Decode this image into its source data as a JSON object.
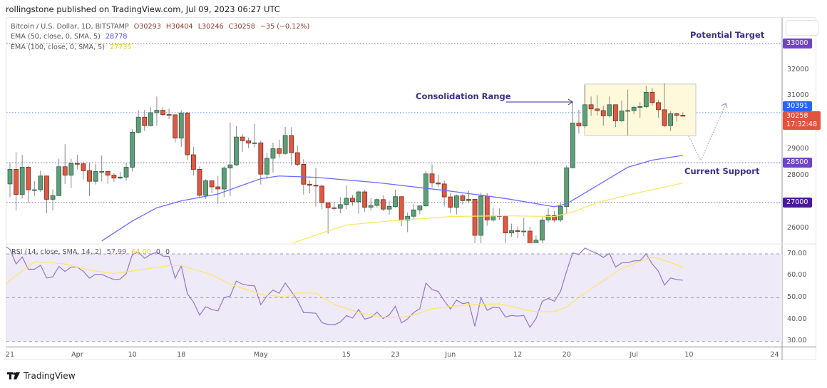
{
  "header": {
    "publisher": "rollingstone published on TradingView.com, Jul 09, 2023 06:27 UTC"
  },
  "legend": {
    "symbol": "Bitcoin / U.S. Dollar, 1D, BITSTAMP",
    "open": "O30293",
    "high": "H30404",
    "low": "L30246",
    "close": "C30258",
    "change": "−35 (−0.12%)",
    "ema50_label": "EMA (50, close, 0, SMA, 5)",
    "ema50_value": "28778",
    "ema100_label": "EMA (100, close, 0, SMA, 5)",
    "ema100_value": "27735",
    "rsi_label": "RSI (14, close, SMA, 14, 2)",
    "rsi_value": "57.99",
    "rsi_sma_value": "64.00",
    "rsi_extra1": "0",
    "rsi_extra2": "0"
  },
  "annotations": {
    "consolidation": "Consolidation Range",
    "target": "Potential Target",
    "support": "Current Support"
  },
  "price_axis": {
    "ticks": [
      "32000",
      "31000",
      "29000",
      "28000",
      "26000"
    ],
    "levels": [
      {
        "label": "33000",
        "color": "#7045c5"
      },
      {
        "label": "28500",
        "color": "#7045c5"
      },
      {
        "label": "27000",
        "color": "#4a1a9a"
      }
    ],
    "prev_close": {
      "label": "30391",
      "color": "#2962ff"
    },
    "last": {
      "label": "30258",
      "countdown": "17:32:48",
      "color": "#e0533c"
    }
  },
  "rsi_axis": {
    "ticks": [
      "70.00",
      "60.00",
      "50.00",
      "40.00",
      "30.00"
    ]
  },
  "time_axis": {
    "ticks": [
      {
        "label": "21",
        "date": "2023-03-21"
      },
      {
        "label": "Apr",
        "date": "2023-04-01"
      },
      {
        "label": "10",
        "date": "2023-04-10"
      },
      {
        "label": "18",
        "date": "2023-04-18"
      },
      {
        "label": "May",
        "date": "2023-05-01"
      },
      {
        "label": "15",
        "date": "2023-05-15"
      },
      {
        "label": "23",
        "date": "2023-05-23"
      },
      {
        "label": "Jun",
        "date": "2023-06-01"
      },
      {
        "label": "12",
        "date": "2023-06-12"
      },
      {
        "label": "20",
        "date": "2023-06-20"
      },
      {
        "label": "Jul",
        "date": "2023-07-01"
      },
      {
        "label": "10",
        "date": "2023-07-10"
      },
      {
        "label": "24",
        "date": "2023-07-24"
      }
    ]
  },
  "footer": {
    "brand": "TradingView"
  },
  "colors": {
    "up": "#5e9f7a",
    "up_border": "#2f5e43",
    "down": "#dc5a44",
    "down_border": "#7a2a1e",
    "ema50": "#6b6bff",
    "ema100": "#ffe566",
    "rsi": "#9575cd",
    "rsi_sma": "#ffe566",
    "rsi_band": "#efeaf7"
  },
  "chart_data": {
    "type": "candlestick",
    "symbol": "BTCUSD",
    "interval": "1D",
    "ylim": [
      25450,
      33500
    ],
    "rsi_ylim": [
      25,
      75
    ],
    "horizontal_levels": [
      33000,
      30391,
      28500,
      27000
    ],
    "consolidation_range": {
      "from": "2023-06-22",
      "to": "2023-07-10",
      "high": 31470,
      "low": 29530
    },
    "candles": [
      [
        "2023-03-21",
        27700,
        28480,
        27200,
        28250
      ],
      [
        "2023-03-22",
        28250,
        28900,
        26700,
        27300
      ],
      [
        "2023-03-23",
        27300,
        28800,
        27150,
        28330
      ],
      [
        "2023-03-24",
        28330,
        28380,
        27000,
        27480
      ],
      [
        "2023-03-25",
        27480,
        27800,
        27250,
        27480
      ],
      [
        "2023-03-26",
        27480,
        28200,
        27400,
        28000
      ],
      [
        "2023-03-27",
        28000,
        28020,
        26600,
        27120
      ],
      [
        "2023-03-28",
        27120,
        27500,
        26700,
        27260
      ],
      [
        "2023-03-29",
        27260,
        28650,
        27240,
        28350
      ],
      [
        "2023-03-30",
        28350,
        29200,
        27700,
        28030
      ],
      [
        "2023-03-31",
        28030,
        28650,
        27550,
        28470
      ],
      [
        "2023-04-01",
        28470,
        28800,
        28250,
        28460
      ],
      [
        "2023-04-02",
        28460,
        28530,
        27870,
        28200
      ],
      [
        "2023-04-03",
        28200,
        28500,
        27250,
        27800
      ],
      [
        "2023-04-04",
        27800,
        28450,
        27680,
        28170
      ],
      [
        "2023-04-05",
        28170,
        28770,
        27800,
        28170
      ],
      [
        "2023-04-06",
        28170,
        28200,
        27710,
        28030
      ],
      [
        "2023-04-07",
        28030,
        28100,
        27780,
        27920
      ],
      [
        "2023-04-08",
        27920,
        28150,
        27880,
        27960
      ],
      [
        "2023-04-09",
        27960,
        28500,
        27820,
        28330
      ],
      [
        "2023-04-10",
        28330,
        29770,
        28170,
        29650
      ],
      [
        "2023-04-11",
        29650,
        30480,
        29600,
        30220
      ],
      [
        "2023-04-12",
        30220,
        30500,
        29700,
        29900
      ],
      [
        "2023-04-13",
        29900,
        30600,
        29870,
        30390
      ],
      [
        "2023-04-14",
        30390,
        31000,
        29900,
        30480
      ],
      [
        "2023-04-15",
        30480,
        30600,
        30250,
        30320
      ],
      [
        "2023-04-16",
        30320,
        30540,
        30150,
        30310
      ],
      [
        "2023-04-17",
        30310,
        30330,
        29270,
        29430
      ],
      [
        "2023-04-18",
        29430,
        30480,
        29100,
        30380
      ],
      [
        "2023-04-19",
        30380,
        30420,
        28600,
        28800
      ],
      [
        "2023-04-20",
        28800,
        29100,
        28020,
        28250
      ],
      [
        "2023-04-21",
        28250,
        28360,
        27150,
        27270
      ],
      [
        "2023-04-22",
        27270,
        27880,
        27130,
        27820
      ],
      [
        "2023-04-23",
        27820,
        27820,
        27370,
        27590
      ],
      [
        "2023-04-24",
        27590,
        28000,
        26950,
        27510
      ],
      [
        "2023-04-25",
        27510,
        28370,
        27200,
        28300
      ],
      [
        "2023-04-26",
        28300,
        30020,
        27250,
        28420
      ],
      [
        "2023-04-27",
        28420,
        29880,
        28380,
        29470
      ],
      [
        "2023-04-28",
        29470,
        29570,
        28900,
        29330
      ],
      [
        "2023-04-29",
        29330,
        29450,
        29050,
        29240
      ],
      [
        "2023-04-30",
        29240,
        29960,
        29080,
        29250
      ],
      [
        "2023-05-01",
        29250,
        29330,
        27680,
        28070
      ],
      [
        "2023-05-02",
        28070,
        28880,
        27880,
        28670
      ],
      [
        "2023-05-03",
        28670,
        29260,
        28130,
        29030
      ],
      [
        "2023-05-04",
        29030,
        29370,
        28700,
        28850
      ],
      [
        "2023-05-05",
        28850,
        29850,
        28800,
        29530
      ],
      [
        "2023-05-06",
        29530,
        29840,
        28400,
        28880
      ],
      [
        "2023-05-07",
        28880,
        29150,
        28370,
        28440
      ],
      [
        "2023-05-08",
        28440,
        28630,
        27300,
        27690
      ],
      [
        "2023-05-09",
        27690,
        27840,
        27350,
        27650
      ],
      [
        "2023-05-10",
        27650,
        28300,
        26850,
        27620
      ],
      [
        "2023-05-11",
        27620,
        27650,
        26750,
        26990
      ],
      [
        "2023-05-12",
        26990,
        27000,
        25830,
        26800
      ],
      [
        "2023-05-13",
        26800,
        27020,
        26690,
        26780
      ],
      [
        "2023-05-14",
        26780,
        27200,
        26590,
        26920
      ],
      [
        "2023-05-15",
        26920,
        27650,
        26750,
        27160
      ],
      [
        "2023-05-16",
        27160,
        27280,
        26880,
        27030
      ],
      [
        "2023-05-17",
        27030,
        27450,
        26580,
        27400
      ],
      [
        "2023-05-18",
        27400,
        27480,
        26650,
        26820
      ],
      [
        "2023-05-19",
        26820,
        27170,
        26700,
        26890
      ],
      [
        "2023-05-20",
        26890,
        27150,
        26810,
        27110
      ],
      [
        "2023-05-21",
        27110,
        27270,
        26670,
        26750
      ],
      [
        "2023-05-22",
        26750,
        27050,
        26550,
        26850
      ],
      [
        "2023-05-23",
        26850,
        27480,
        26800,
        27220
      ],
      [
        "2023-05-24",
        27220,
        27220,
        26100,
        26330
      ],
      [
        "2023-05-25",
        26330,
        26620,
        25880,
        26480
      ],
      [
        "2023-05-26",
        26480,
        26940,
        26350,
        26720
      ],
      [
        "2023-05-27",
        26720,
        26900,
        26560,
        26870
      ],
      [
        "2023-05-28",
        26870,
        28180,
        26850,
        28080
      ],
      [
        "2023-05-29",
        28080,
        28440,
        27560,
        27740
      ],
      [
        "2023-05-30",
        27740,
        28050,
        27580,
        27700
      ],
      [
        "2023-05-31",
        27700,
        27820,
        26850,
        27210
      ],
      [
        "2023-06-01",
        27210,
        27350,
        26600,
        26820
      ],
      [
        "2023-06-02",
        26820,
        27300,
        26550,
        27250
      ],
      [
        "2023-06-03",
        27250,
        27330,
        26930,
        27070
      ],
      [
        "2023-06-04",
        27070,
        27440,
        26970,
        27120
      ],
      [
        "2023-06-05",
        27120,
        27140,
        25400,
        25760
      ],
      [
        "2023-06-06",
        25760,
        27370,
        25400,
        27240
      ],
      [
        "2023-06-07",
        27240,
        27360,
        26120,
        26340
      ],
      [
        "2023-06-08",
        26340,
        26800,
        26280,
        26500
      ],
      [
        "2023-06-09",
        26500,
        26780,
        26340,
        26480
      ],
      [
        "2023-06-10",
        26480,
        26540,
        25400,
        25850
      ],
      [
        "2023-06-11",
        25850,
        26200,
        25700,
        25940
      ],
      [
        "2023-06-12",
        25940,
        26100,
        25650,
        25900
      ],
      [
        "2023-06-13",
        25900,
        26420,
        25730,
        25920
      ],
      [
        "2023-06-14",
        25920,
        26080,
        24800,
        25120
      ],
      [
        "2023-06-15",
        25120,
        25750,
        24700,
        25580
      ],
      [
        "2023-06-16",
        25580,
        26480,
        25180,
        26340
      ],
      [
        "2023-06-17",
        26340,
        26780,
        26250,
        26510
      ],
      [
        "2023-06-18",
        26510,
        26680,
        26250,
        26340
      ],
      [
        "2023-06-19",
        26340,
        27000,
        26270,
        26850
      ],
      [
        "2023-06-20",
        26850,
        28400,
        26600,
        28310
      ],
      [
        "2023-06-21",
        28310,
        30800,
        28300,
        30000
      ],
      [
        "2023-06-22",
        30000,
        30500,
        29600,
        29890
      ],
      [
        "2023-06-23",
        29890,
        31430,
        29820,
        30690
      ],
      [
        "2023-06-24",
        30690,
        31000,
        30270,
        30530
      ],
      [
        "2023-06-25",
        30530,
        31050,
        30290,
        30470
      ],
      [
        "2023-06-26",
        30470,
        30650,
        29900,
        30270
      ],
      [
        "2023-06-27",
        30270,
        31000,
        30220,
        30690
      ],
      [
        "2023-06-28",
        30690,
        30700,
        29850,
        30080
      ],
      [
        "2023-06-29",
        30080,
        30850,
        30040,
        30450
      ],
      [
        "2023-06-30",
        30450,
        31260,
        29530,
        30470
      ],
      [
        "2023-07-01",
        30470,
        30650,
        30330,
        30590
      ],
      [
        "2023-07-02",
        30590,
        30790,
        30200,
        30620
      ],
      [
        "2023-07-03",
        30620,
        31400,
        30560,
        31160
      ],
      [
        "2023-07-04",
        31160,
        31330,
        30640,
        30770
      ],
      [
        "2023-07-05",
        30770,
        30870,
        30200,
        30500
      ],
      [
        "2023-07-06",
        30500,
        31500,
        29850,
        29900
      ],
      [
        "2023-07-07",
        29900,
        30450,
        29700,
        30350
      ],
      [
        "2023-07-08",
        30350,
        30380,
        30050,
        30290
      ],
      [
        "2023-07-09",
        30293,
        30404,
        30246,
        30258
      ]
    ],
    "ema50": [
      [
        "2023-04-05",
        25550
      ],
      [
        "2023-04-10",
        26300
      ],
      [
        "2023-04-14",
        26800
      ],
      [
        "2023-04-18",
        27060
      ],
      [
        "2023-04-24",
        27320
      ],
      [
        "2023-05-01",
        27900
      ],
      [
        "2023-05-04",
        28000
      ],
      [
        "2023-05-10",
        27950
      ],
      [
        "2023-05-20",
        27750
      ],
      [
        "2023-06-01",
        27430
      ],
      [
        "2023-06-10",
        27150
      ],
      [
        "2023-06-18",
        26840
      ],
      [
        "2023-06-20",
        26950
      ],
      [
        "2023-06-24",
        27500
      ],
      [
        "2023-06-30",
        28330
      ],
      [
        "2023-07-04",
        28600
      ],
      [
        "2023-07-09",
        28778
      ]
    ],
    "ema100": [
      [
        "2023-05-06",
        25450
      ],
      [
        "2023-05-11",
        25850
      ],
      [
        "2023-05-15",
        26150
      ],
      [
        "2023-05-22",
        26300
      ],
      [
        "2023-06-01",
        26470
      ],
      [
        "2023-06-10",
        26500
      ],
      [
        "2023-06-18",
        26470
      ],
      [
        "2023-06-21",
        26640
      ],
      [
        "2023-06-25",
        27000
      ],
      [
        "2023-07-01",
        27330
      ],
      [
        "2023-07-09",
        27735
      ]
    ],
    "rsi": {
      "start": "2023-03-20",
      "values": [
        74,
        72,
        65.4,
        68.6,
        63,
        63,
        64.8,
        59,
        59.6,
        64.3,
        62,
        64,
        64,
        62,
        58.9,
        60.7,
        60.7,
        59.4,
        58.3,
        58.5,
        61,
        69.7,
        70.8,
        68,
        69.7,
        70.8,
        69,
        68.8,
        58.9,
        64.6,
        51.8,
        48,
        42,
        45.9,
        44.6,
        44,
        50,
        50.8,
        57.6,
        56.2,
        55.6,
        55.4,
        46.8,
        50.8,
        53.5,
        52,
        56.7,
        52.9,
        48.8,
        43.2,
        43.1,
        42.9,
        38.6,
        37.8,
        37.6,
        38.9,
        41.8,
        40.7,
        44.6,
        40.2,
        41,
        43.4,
        40.5,
        42.1,
        46.1,
        38.5,
        40.3,
        43.2,
        45,
        56.7,
        53.7,
        52.9,
        48.6,
        44.8,
        48.9,
        47.3,
        47.8,
        36.9,
        50,
        44.3,
        45.6,
        45.4,
        41.2,
        41.9,
        41.6,
        41.9,
        36.5,
        40.5,
        48.3,
        49.7,
        48.4,
        52.9,
        62.1,
        70.5,
        69.7,
        72.7,
        71.3,
        70.2,
        68.4,
        70.2,
        64,
        65.9,
        66,
        66.8,
        66.9,
        70,
        65.4,
        62.1,
        55.8,
        59,
        58.3,
        57.99
      ]
    },
    "rsi_sma": [
      [
        "2023-03-20",
        55
      ],
      [
        "2023-03-21",
        58
      ],
      [
        "2023-03-25",
        66.4
      ],
      [
        "2023-03-28",
        65.9
      ],
      [
        "2023-03-30",
        65.4
      ],
      [
        "2023-04-03",
        62.6
      ],
      [
        "2023-04-07",
        61
      ],
      [
        "2023-04-11",
        62.6
      ],
      [
        "2023-04-16",
        64.6
      ],
      [
        "2023-04-18",
        64.6
      ],
      [
        "2023-04-23",
        60.5
      ],
      [
        "2023-04-26",
        56.2
      ],
      [
        "2023-05-01",
        51.6
      ],
      [
        "2023-05-05",
        50.2
      ],
      [
        "2023-05-07",
        52.2
      ],
      [
        "2023-05-10",
        52
      ],
      [
        "2023-05-13",
        47
      ],
      [
        "2023-05-14",
        46
      ],
      [
        "2023-05-17",
        43.2
      ],
      [
        "2023-05-21",
        41
      ],
      [
        "2023-05-24",
        41
      ],
      [
        "2023-05-26",
        42.1
      ],
      [
        "2023-05-29",
        45
      ],
      [
        "2023-06-04",
        46.8
      ],
      [
        "2023-06-09",
        47.2
      ],
      [
        "2023-06-12",
        45.4
      ],
      [
        "2023-06-14",
        44
      ],
      [
        "2023-06-16",
        43.5
      ],
      [
        "2023-06-18",
        43.7
      ],
      [
        "2023-06-20",
        45.7
      ],
      [
        "2023-06-22",
        50.2
      ],
      [
        "2023-06-26",
        57.8
      ],
      [
        "2023-06-29",
        63.4
      ],
      [
        "2023-07-02",
        66.6
      ],
      [
        "2023-07-04",
        68.6
      ],
      [
        "2023-07-05",
        68
      ],
      [
        "2023-07-09",
        64
      ]
    ]
  }
}
